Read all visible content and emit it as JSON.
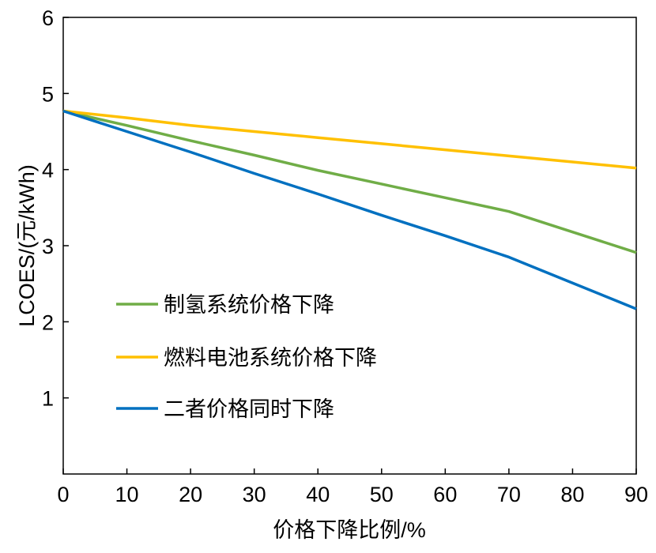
{
  "chart_data": {
    "type": "line",
    "title": "",
    "xlabel": "价格下降比例/%",
    "ylabel": "LCOES/(元/kWh)",
    "xlim": [
      0,
      90
    ],
    "ylim": [
      0,
      6
    ],
    "xticks": [
      "0",
      "10",
      "20",
      "30",
      "40",
      "50",
      "60",
      "70",
      "80",
      "90"
    ],
    "yticks": [
      "1",
      "2",
      "3",
      "4",
      "5",
      "6"
    ],
    "grid": false,
    "legend_placement": "lower-left",
    "x": [
      0,
      10,
      20,
      30,
      40,
      50,
      60,
      70,
      80,
      90
    ],
    "series": [
      {
        "name": "制氢系统价格下降",
        "color": "#70AD47",
        "values": [
          4.77,
          4.58,
          4.38,
          4.19,
          3.99,
          3.81,
          3.63,
          3.45,
          3.18,
          2.91
        ]
      },
      {
        "name": "燃料电池系统价格下降",
        "color": "#FFC000",
        "values": [
          4.77,
          4.68,
          4.58,
          4.5,
          4.42,
          4.34,
          4.26,
          4.18,
          4.1,
          4.02
        ]
      },
      {
        "name": "二者价格同时下降",
        "color": "#0070C0",
        "values": [
          4.77,
          4.5,
          4.23,
          3.95,
          3.68,
          3.4,
          3.13,
          2.85,
          2.51,
          2.17
        ]
      }
    ]
  }
}
